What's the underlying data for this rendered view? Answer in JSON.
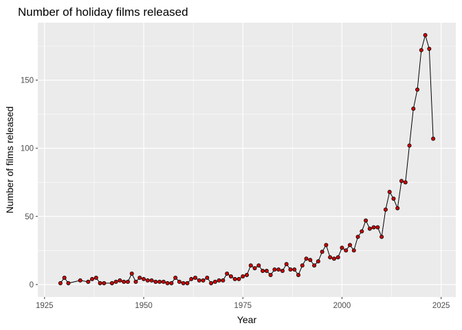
{
  "chart_data": {
    "type": "line",
    "title": "Number of holiday films released",
    "xlabel": "Year",
    "ylabel": "Number of films released",
    "xlim": [
      1925,
      2025
    ],
    "ylim": [
      0,
      183
    ],
    "x_ticks": [
      1925,
      1950,
      1975,
      2000,
      2025
    ],
    "y_ticks": [
      0,
      50,
      100,
      150
    ],
    "grid": true,
    "colors": {
      "panel": "#ebebeb",
      "grid": "#ffffff",
      "line": "#000000",
      "point_fill": "#cc0000",
      "point_stroke": "#000000"
    },
    "x": [
      1929,
      1930,
      1931,
      1934,
      1936,
      1937,
      1938,
      1939,
      1940,
      1942,
      1943,
      1944,
      1945,
      1946,
      1947,
      1948,
      1949,
      1950,
      1951,
      1952,
      1953,
      1954,
      1955,
      1956,
      1957,
      1958,
      1959,
      1960,
      1961,
      1962,
      1963,
      1964,
      1965,
      1966,
      1967,
      1968,
      1969,
      1970,
      1971,
      1972,
      1973,
      1974,
      1975,
      1976,
      1977,
      1978,
      1979,
      1980,
      1981,
      1982,
      1983,
      1984,
      1985,
      1986,
      1987,
      1988,
      1989,
      1990,
      1991,
      1992,
      1993,
      1994,
      1995,
      1996,
      1997,
      1998,
      1999,
      2000,
      2001,
      2002,
      2003,
      2004,
      2005,
      2006,
      2007,
      2008,
      2009,
      2010,
      2011,
      2012,
      2013,
      2014,
      2015,
      2016,
      2017,
      2018,
      2019,
      2020,
      2021,
      2022,
      2023
    ],
    "y": [
      1,
      5,
      1,
      3,
      2,
      4,
      5,
      1,
      1,
      1,
      2,
      3,
      2,
      2,
      8,
      2,
      5,
      4,
      3,
      3,
      2,
      2,
      2,
      1,
      1,
      5,
      2,
      1,
      1,
      4,
      5,
      3,
      3,
      5,
      1,
      2,
      3,
      3,
      8,
      6,
      4,
      4,
      6,
      7,
      14,
      12,
      14,
      10,
      10,
      7,
      11,
      11,
      10,
      15,
      11,
      11,
      7,
      14,
      19,
      18,
      14,
      17,
      24,
      29,
      20,
      19,
      20,
      27,
      25,
      29,
      25,
      35,
      39,
      47,
      41,
      42,
      42,
      35,
      55,
      68,
      63,
      56,
      76,
      75,
      102,
      129,
      143,
      172,
      183,
      173,
      107
    ]
  }
}
